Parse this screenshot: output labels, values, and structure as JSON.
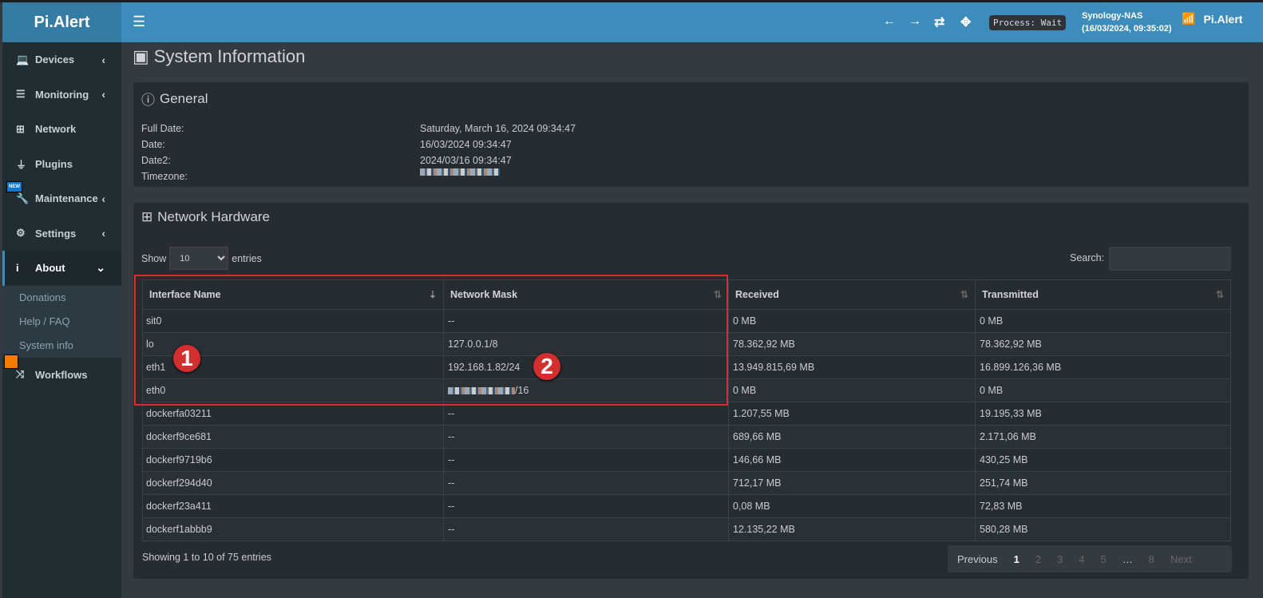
{
  "app": {
    "logo": "Pi.Alert",
    "brand": "Pi.Alert",
    "process": "Process: Wait",
    "host": "Synology-NAS",
    "host_time": "(16/03/2024, 09:35:02)"
  },
  "icons": [
    "menu-icon",
    "arrow-left-icon",
    "arrow-right-icon",
    "refresh-icon",
    "move-icon",
    "router-icon"
  ],
  "sidebar": {
    "items": [
      {
        "label": "Devices",
        "icon": "laptop-icon"
      },
      {
        "label": "Monitoring",
        "icon": "chart-icon"
      },
      {
        "label": "Network",
        "icon": "network-icon"
      },
      {
        "label": "Plugins",
        "icon": "plug-icon"
      },
      {
        "label": "Maintenance",
        "icon": "wrench-icon",
        "badge": "NEW"
      },
      {
        "label": "Settings",
        "icon": "gear-icon"
      },
      {
        "label": "About",
        "icon": "info-icon"
      },
      {
        "label": "Workflows",
        "icon": "shuffle-icon"
      }
    ],
    "sub": [
      "Donations",
      "Help / FAQ",
      "System info"
    ]
  },
  "page_title": "System Information",
  "general": {
    "title": "General",
    "rows": [
      {
        "k": "Full Date:",
        "v": "Saturday, March 16, 2024 09:34:47"
      },
      {
        "k": "Date:",
        "v": "16/03/2024 09:34:47"
      },
      {
        "k": "Date2:",
        "v": "2024/03/16 09:34:47"
      },
      {
        "k": "Timezone:",
        "v": ""
      }
    ]
  },
  "network": {
    "title": "Network Hardware",
    "show": "Show",
    "entries": "entries",
    "page_size": "10",
    "search": "Search:",
    "headers": [
      "Interface Name",
      "Network Mask",
      "Received",
      "Transmitted"
    ],
    "rows": [
      [
        "sit0",
        "--",
        "0 MB",
        "0 MB"
      ],
      [
        "lo",
        "127.0.0.1/8",
        "78.362,92 MB",
        "78.362,92 MB"
      ],
      [
        "eth1",
        "192.168.1.82/24",
        "13.949.815,69 MB",
        "16.899.126,36 MB"
      ],
      [
        "eth0",
        "/16",
        "0 MB",
        "0 MB"
      ],
      [
        "dockerfa03211",
        "--",
        "1.207,55 MB",
        "19.195,33 MB"
      ],
      [
        "dockerf9ce681",
        "--",
        "689,66 MB",
        "2.171,06 MB"
      ],
      [
        "dockerf9719b6",
        "--",
        "146,66 MB",
        "430,25 MB"
      ],
      [
        "dockerf294d40",
        "--",
        "712,17 MB",
        "251,74 MB"
      ],
      [
        "dockerf23a411",
        "--",
        "0,08 MB",
        "72,83 MB"
      ],
      [
        "dockerf1abbb9",
        "--",
        "12.135,22 MB",
        "580,28 MB"
      ]
    ],
    "info": "Showing 1 to 10 of 75 entries",
    "pager": {
      "prev": "Previous",
      "pages": [
        "1",
        "2",
        "3",
        "4",
        "5",
        "…",
        "8"
      ],
      "next": "Next",
      "current": "1"
    }
  },
  "markers": [
    "1",
    "2"
  ],
  "colors": {
    "header": "#3c8dbc",
    "sidebar": "#222d32",
    "box": "#272c30",
    "highlight": "#d32f2f"
  }
}
